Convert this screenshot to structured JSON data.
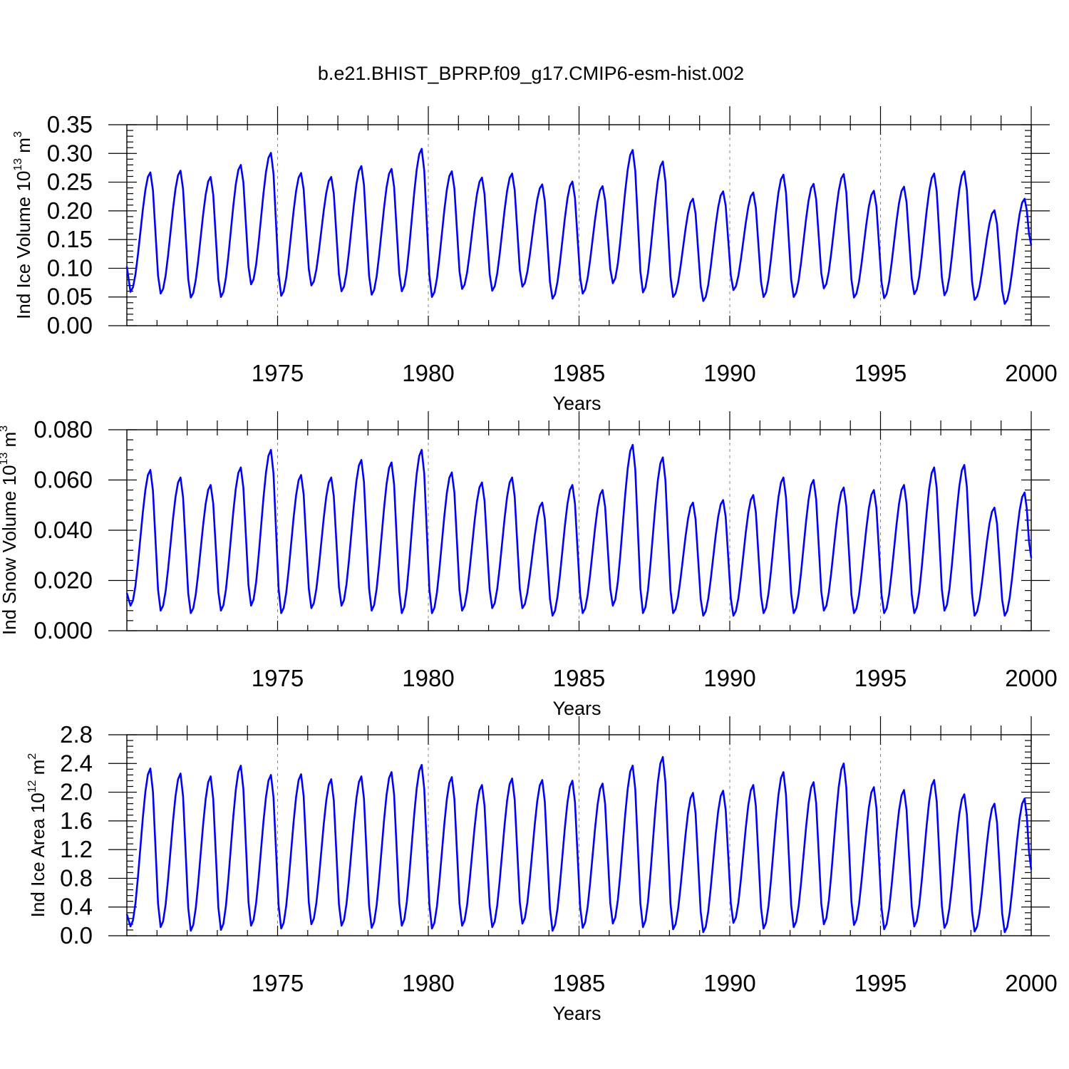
{
  "figure": {
    "title": "b.e21.BHIST_BPRP.f09_g17.CMIP6-esm-hist.002",
    "line_color": "#0000ff"
  },
  "chart_data": [
    {
      "type": "line",
      "title": "",
      "xlabel": "Years",
      "ylabel_text": "Ind Ice Volume 10",
      "ylabel_exp": "13",
      "ylabel_unit": " m",
      "ylabel_unit_exp": "3",
      "xlim": [
        1970.0,
        2000.0
      ],
      "ylim": [
        0.0,
        0.35
      ],
      "yticks": [
        "0.00",
        "0.05",
        "0.10",
        "0.15",
        "0.20",
        "0.25",
        "0.30",
        "0.35"
      ],
      "xticks": [
        "1975",
        "1980",
        "1985",
        "1990",
        "1995",
        "2000"
      ],
      "grid": "dashed vertical at x ticks",
      "series": [
        {
          "peaks": [
            0.267,
            0.27,
            0.259,
            0.28,
            0.301,
            0.266,
            0.259,
            0.278,
            0.273,
            0.308,
            0.269,
            0.258,
            0.265,
            0.246,
            0.251,
            0.243,
            0.306,
            0.286,
            0.221,
            0.234,
            0.232,
            0.263,
            0.247,
            0.264,
            0.235,
            0.242,
            0.265,
            0.269,
            0.201,
            0.221
          ],
          "troughs": [
            0.059,
            0.056,
            0.049,
            0.05,
            0.072,
            0.052,
            0.07,
            0.06,
            0.054,
            0.06,
            0.05,
            0.064,
            0.061,
            0.068,
            0.047,
            0.056,
            0.074,
            0.058,
            0.05,
            0.043,
            0.062,
            0.05,
            0.05,
            0.065,
            0.049,
            0.048,
            0.055,
            0.053,
            0.045,
            0.038
          ],
          "start": 0.103,
          "end": 0.14
        }
      ]
    },
    {
      "type": "line",
      "title": "",
      "xlabel": "Years",
      "ylabel_text": "Ind Snow Volume 10",
      "ylabel_exp": "13",
      "ylabel_unit": " m",
      "ylabel_unit_exp": "3",
      "xlim": [
        1970.0,
        2000.0
      ],
      "ylim": [
        0.0,
        0.08
      ],
      "yticks": [
        "0.000",
        "0.020",
        "0.040",
        "0.060",
        "0.080"
      ],
      "xticks": [
        "1975",
        "1980",
        "1985",
        "1990",
        "1995",
        "2000"
      ],
      "grid": "dashed vertical at x ticks",
      "series": [
        {
          "peaks": [
            0.064,
            0.061,
            0.058,
            0.065,
            0.072,
            0.062,
            0.061,
            0.068,
            0.067,
            0.072,
            0.063,
            0.059,
            0.061,
            0.051,
            0.058,
            0.056,
            0.074,
            0.069,
            0.051,
            0.052,
            0.054,
            0.061,
            0.06,
            0.057,
            0.056,
            0.058,
            0.065,
            0.066,
            0.049,
            0.055
          ],
          "troughs": [
            0.01,
            0.008,
            0.007,
            0.008,
            0.01,
            0.007,
            0.009,
            0.01,
            0.008,
            0.007,
            0.007,
            0.008,
            0.009,
            0.009,
            0.006,
            0.007,
            0.01,
            0.007,
            0.007,
            0.006,
            0.006,
            0.007,
            0.007,
            0.008,
            0.007,
            0.007,
            0.007,
            0.008,
            0.006,
            0.006
          ],
          "start": 0.015,
          "end": 0.029
        }
      ]
    },
    {
      "type": "line",
      "title": "",
      "xlabel": "Years",
      "ylabel_text": "Ind Ice Area 10",
      "ylabel_exp": "12",
      "ylabel_unit": " m",
      "ylabel_unit_exp": "2",
      "xlim": [
        1970.0,
        2000.0
      ],
      "ylim": [
        0.0,
        2.8
      ],
      "yticks": [
        "0.0",
        "0.4",
        "0.8",
        "1.2",
        "1.6",
        "2.0",
        "2.4",
        "2.8"
      ],
      "xticks": [
        "1975",
        "1980",
        "1985",
        "1990",
        "1995",
        "2000"
      ],
      "grid": "dashed vertical at x ticks",
      "series": [
        {
          "peaks": [
            2.33,
            2.26,
            2.22,
            2.37,
            2.24,
            2.25,
            2.18,
            2.22,
            2.28,
            2.38,
            2.21,
            2.1,
            2.19,
            2.17,
            2.16,
            2.12,
            2.37,
            2.49,
            1.99,
            2.02,
            2.1,
            2.28,
            2.14,
            2.4,
            2.07,
            2.03,
            2.17,
            1.97,
            1.84,
            1.91
          ],
          "troughs": [
            0.13,
            0.12,
            0.07,
            0.08,
            0.14,
            0.1,
            0.16,
            0.14,
            0.11,
            0.14,
            0.1,
            0.14,
            0.12,
            0.17,
            0.07,
            0.11,
            0.17,
            0.12,
            0.09,
            0.05,
            0.18,
            0.1,
            0.12,
            0.16,
            0.15,
            0.09,
            0.13,
            0.11,
            0.06,
            0.05
          ],
          "start": 0.3,
          "end": 0.92
        }
      ]
    }
  ]
}
